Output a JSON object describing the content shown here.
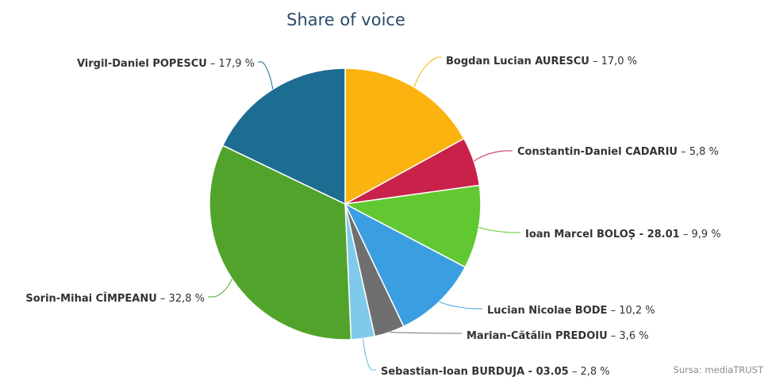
{
  "credit": "Sursa: mediaTRUST",
  "chart_data": {
    "type": "pie",
    "title": "Share of voice",
    "slices": [
      {
        "label": "Bogdan Lucian AURESCU",
        "value": 17.0,
        "value_text": " – 17,0 %",
        "color": "#fbb30f"
      },
      {
        "label": "Constantin-Daniel CADARIU",
        "value": 5.8,
        "value_text": " – 5,8 %",
        "color": "#c8224a"
      },
      {
        "label": "Ioan Marcel BOLOȘ - 28.01",
        "value": 9.9,
        "value_text": " – 9,9 %",
        "color": "#62c832"
      },
      {
        "label": "Lucian Nicolae BODE",
        "value": 10.2,
        "value_text": " – 10,2 %",
        "color": "#3a9ee0"
      },
      {
        "label": "Marian-Cătălin PREDOIU",
        "value": 3.6,
        "value_text": " – 3,6 %",
        "color": "#6f6f6f"
      },
      {
        "label": "Sebastian-Ioan BURDUJA - 03.05",
        "value": 2.8,
        "value_text": " – 2,8 %",
        "color": "#7fcaea"
      },
      {
        "label": "Sorin-Mihai CÎMPEANU",
        "value": 32.8,
        "value_text": " – 32,8 %",
        "color": "#51a32c"
      },
      {
        "label": "Virgil-Daniel POPESCU",
        "value": 17.9,
        "value_text": " – 17,9 %",
        "color": "#1d6c92"
      }
    ]
  }
}
